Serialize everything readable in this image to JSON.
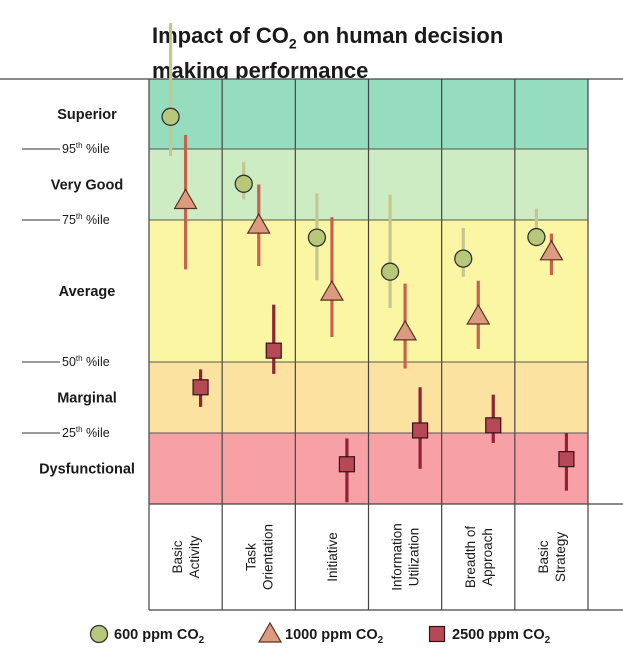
{
  "title": {
    "line1_prefix": "Impact of CO",
    "line1_sub": "2",
    "line1_suffix": " on human decision",
    "line2": "making performance"
  },
  "colors": {
    "superior": "#96dcbe",
    "very_good": "#cdecc3",
    "average": "#fbf6a4",
    "marginal": "#fce2a1",
    "dysfunctional": "#f7a0a6",
    "series_600": "#b8c87a",
    "series_600_bar": "#c2c890",
    "series_1000": "#dc9a7e",
    "series_1000_bar": "#c8614d",
    "series_2500": "#b54a56",
    "series_2500_bar": "#8f2235"
  },
  "chart_data": {
    "type": "scatter",
    "y_scale": "performance rating bands",
    "bands": [
      {
        "name": "Superior",
        "from": 95,
        "to": 100
      },
      {
        "name": "Very Good",
        "from": 75,
        "to": 95
      },
      {
        "name": "Average",
        "from": 50,
        "to": 75
      },
      {
        "name": "Marginal",
        "from": 25,
        "to": 50
      },
      {
        "name": "Dysfunctional",
        "from": 0,
        "to": 25
      }
    ],
    "thresholds": [
      {
        "num": "95",
        "sup": "th",
        "rest": " %ile",
        "value": 95
      },
      {
        "num": "75",
        "sup": "th",
        "rest": " %ile",
        "value": 75
      },
      {
        "num": "50",
        "sup": "th",
        "rest": " %ile",
        "value": 50
      },
      {
        "num": "25",
        "sup": "th",
        "rest": " %ile",
        "value": 25
      }
    ],
    "categories": [
      [
        "Basic",
        "Activity"
      ],
      [
        "Task",
        "Orientation"
      ],
      [
        "Initiative"
      ],
      [
        "Information",
        "Utilization"
      ],
      [
        "Breadth of",
        "Approach"
      ],
      [
        "Basic",
        "Strategy"
      ]
    ],
    "series": [
      {
        "name": "600 ppm CO2",
        "label_prefix": "600 ppm CO",
        "label_sub": "2",
        "marker": "circle",
        "points": [
          {
            "y": 97.3,
            "lo": 93.0,
            "hi": 104.0
          },
          {
            "y": 85.2,
            "lo": 80.8,
            "hi": 91.3
          },
          {
            "y": 71.9,
            "lo": 64.4,
            "hi": 82.5
          },
          {
            "y": 65.9,
            "lo": 59.5,
            "hi": 82.1
          },
          {
            "y": 68.2,
            "lo": 65.0,
            "hi": 73.6
          },
          {
            "y": 72.0,
            "lo": 71.6,
            "hi": 78.2
          }
        ]
      },
      {
        "name": "1000 ppm CO2",
        "label_prefix": "1000 ppm CO",
        "label_sub": "2",
        "marker": "triangle",
        "points": [
          {
            "y": 80.5,
            "lo": 66.3,
            "hi": 96.0
          },
          {
            "y": 74.1,
            "lo": 66.9,
            "hi": 85.0
          },
          {
            "y": 62.3,
            "lo": 54.4,
            "hi": 75.8
          },
          {
            "y": 55.3,
            "lo": 47.7,
            "hi": 63.8
          },
          {
            "y": 58.1,
            "lo": 52.3,
            "hi": 64.3
          },
          {
            "y": 69.4,
            "lo": 65.3,
            "hi": 72.6
          }
        ]
      },
      {
        "name": "2500 ppm CO2",
        "label_prefix": "2500 ppm CO",
        "label_sub": "2",
        "marker": "square",
        "points": [
          {
            "y": 41.1,
            "lo": 34.2,
            "hi": 47.4
          },
          {
            "y": 52.0,
            "lo": 45.8,
            "hi": 60.1
          },
          {
            "y": 14.0,
            "lo": 0.6,
            "hi": 23.1
          },
          {
            "y": 25.9,
            "lo": 12.4,
            "hi": 41.1
          },
          {
            "y": 27.7,
            "lo": 21.5,
            "hi": 38.5
          },
          {
            "y": 15.8,
            "lo": 4.7,
            "hi": 25.0
          }
        ]
      }
    ]
  }
}
